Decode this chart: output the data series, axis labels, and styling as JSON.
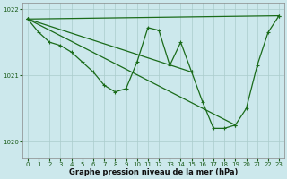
{
  "xlabel": "Graphe pression niveau de la mer (hPa)",
  "background_color": "#cce8ec",
  "grid_color": "#aacccc",
  "line_color": "#1a6b1a",
  "marker": "+",
  "marker_size": 3,
  "marker_lw": 0.8,
  "line_width": 0.9,
  "ylim": [
    1019.75,
    1022.1
  ],
  "xlim": [
    -0.5,
    23.5
  ],
  "yticks": [
    1020,
    1021,
    1022
  ],
  "ytick_labels": [
    "1020",
    "1021",
    "1022"
  ],
  "xticks": [
    0,
    1,
    2,
    3,
    4,
    5,
    6,
    7,
    8,
    9,
    10,
    11,
    12,
    13,
    14,
    15,
    16,
    17,
    18,
    19,
    20,
    21,
    22,
    23
  ],
  "tick_fontsize": 5,
  "xlabel_fontsize": 6,
  "series": [
    {
      "x": [
        0,
        1,
        2,
        3,
        4,
        5,
        6,
        7,
        8,
        9,
        10,
        11,
        12,
        13,
        14,
        15,
        16,
        17,
        18,
        19,
        20,
        21,
        22,
        23
      ],
      "y": [
        1021.85,
        1021.65,
        1021.5,
        1021.45,
        1021.35,
        1021.2,
        1021.05,
        1020.85,
        1020.75,
        1020.8,
        1021.2,
        1021.72,
        1021.68,
        1021.15,
        1021.5,
        1021.05,
        1020.6,
        1020.2,
        1020.2,
        1020.25,
        1020.5,
        1021.15,
        1021.65,
        1021.9
      ]
    },
    {
      "x": [
        0,
        23
      ],
      "y": [
        1021.85,
        1021.9
      ]
    },
    {
      "x": [
        0,
        19
      ],
      "y": [
        1021.85,
        1020.25
      ]
    },
    {
      "x": [
        0,
        15
      ],
      "y": [
        1021.85,
        1021.05
      ]
    }
  ]
}
